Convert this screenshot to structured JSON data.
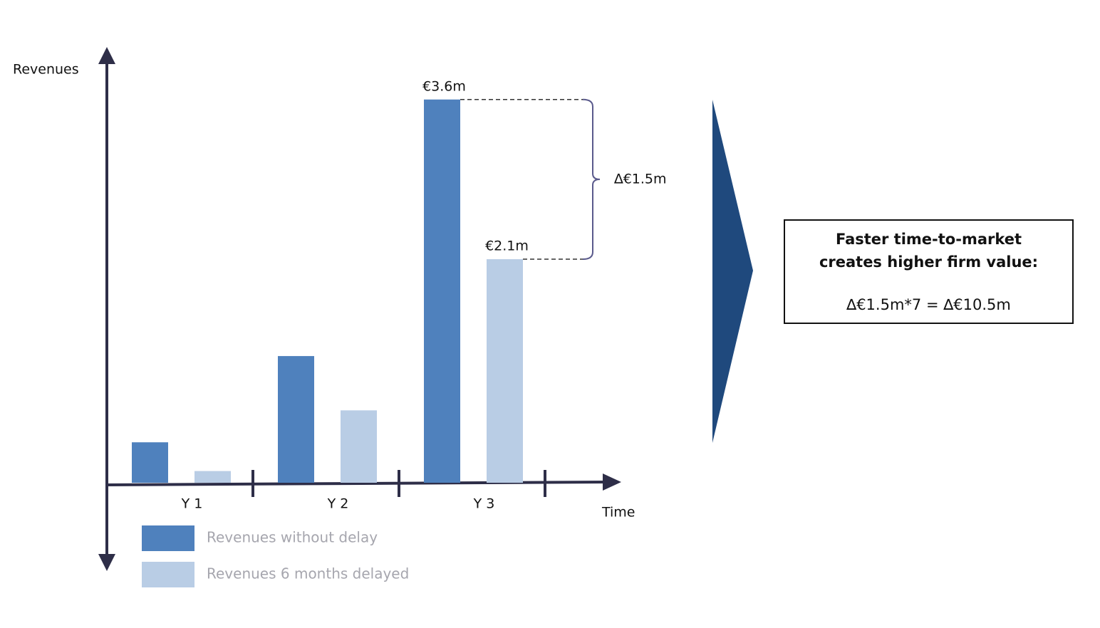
{
  "chart_data": {
    "type": "bar",
    "y_label": "Revenues",
    "x_label": "Time",
    "categories": [
      "Y 1",
      "Y 2",
      "Y 3"
    ],
    "series": [
      {
        "name": "Revenues without delay",
        "color": "#4f81bd",
        "values": [
          0.38,
          1.19,
          3.6
        ],
        "value_labels": [
          null,
          null,
          "€3.6m"
        ]
      },
      {
        "name": "Revenues 6 months delayed",
        "color": "#b9cde5",
        "values": [
          0.11,
          0.68,
          2.1
        ],
        "value_labels": [
          null,
          null,
          "€2.1m"
        ]
      }
    ],
    "ylim": [
      0,
      4.1
    ],
    "annotation": "∆€1.5m",
    "callout": {
      "title": "Faster time-to-market creates higher firm value:",
      "text": "∆€1.5m*7 = ∆€10.5m"
    }
  }
}
